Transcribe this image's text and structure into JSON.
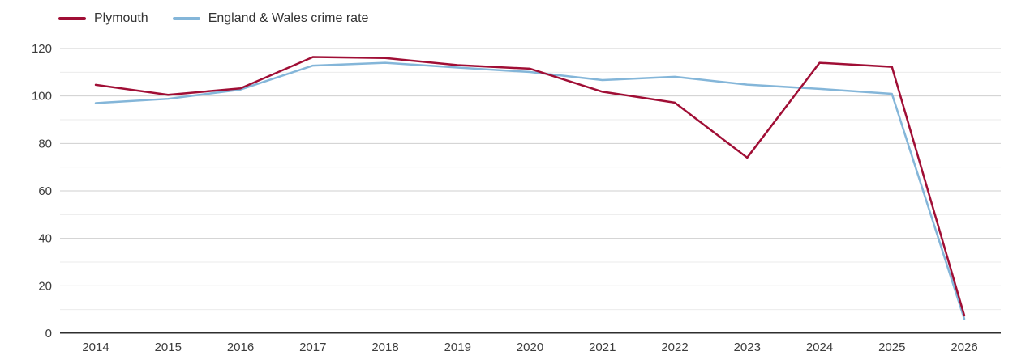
{
  "chart_data": {
    "type": "line",
    "x": [
      "2014",
      "2015",
      "2016",
      "2017",
      "2018",
      "2019",
      "2020",
      "2021",
      "2022",
      "2023",
      "2024",
      "2025",
      "2026"
    ],
    "series": [
      {
        "name": "Plymouth",
        "color": "#a00e35",
        "values": [
          104.7,
          100.5,
          103.2,
          116.4,
          116.0,
          113.0,
          111.5,
          101.8,
          97.2,
          74.0,
          114.0,
          112.3,
          7.5
        ]
      },
      {
        "name": "England & Wales crime rate",
        "color": "#84b6d9",
        "values": [
          97.0,
          98.8,
          102.7,
          112.8,
          114.0,
          112.0,
          110.1,
          106.7,
          108.1,
          104.8,
          103.0,
          100.9,
          6.1
        ]
      }
    ],
    "title": "",
    "xlabel": "",
    "ylabel": "",
    "ylim": [
      0,
      120
    ],
    "yticks": [
      0,
      20,
      40,
      60,
      80,
      100,
      120
    ],
    "minor_gridlines_every": 10,
    "grid": "horizontal",
    "legend_position": "top-left"
  },
  "style": {
    "major_grid_color": "#cfcfcf",
    "minor_grid_color": "#ebebeb",
    "axis_color": "#2e2e2e",
    "tick_text_color": "#3c3c3c"
  }
}
